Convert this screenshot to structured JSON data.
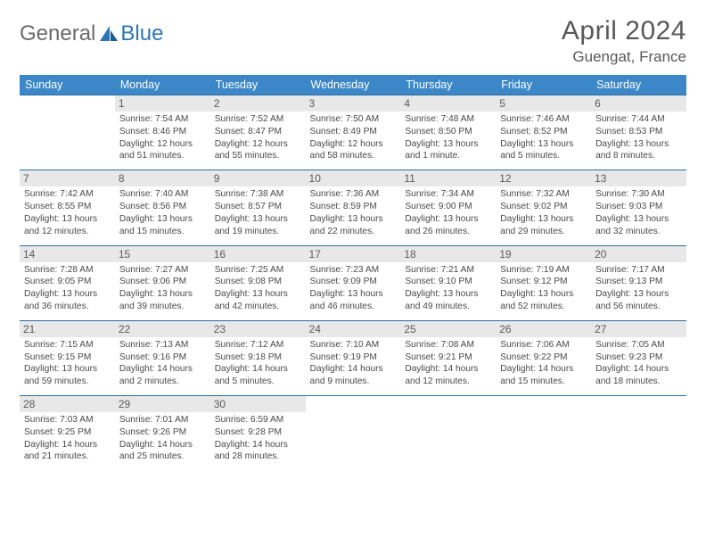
{
  "brand": {
    "part1": "General",
    "part2": "Blue"
  },
  "title": "April 2024",
  "location": "Guengat, France",
  "colors": {
    "header_bg": "#3b87c8",
    "header_text": "#ffffff",
    "border": "#2d6da3",
    "daynum_bg": "#e8e8e8",
    "text": "#4a4a4a",
    "brand_blue": "#2d76b5",
    "brand_gray": "#6a6a6a"
  },
  "weekdays": [
    "Sunday",
    "Monday",
    "Tuesday",
    "Wednesday",
    "Thursday",
    "Friday",
    "Saturday"
  ],
  "weeks": [
    [
      null,
      {
        "d": "1",
        "sr": "Sunrise: 7:54 AM",
        "ss": "Sunset: 8:46 PM",
        "dl1": "Daylight: 12 hours",
        "dl2": "and 51 minutes."
      },
      {
        "d": "2",
        "sr": "Sunrise: 7:52 AM",
        "ss": "Sunset: 8:47 PM",
        "dl1": "Daylight: 12 hours",
        "dl2": "and 55 minutes."
      },
      {
        "d": "3",
        "sr": "Sunrise: 7:50 AM",
        "ss": "Sunset: 8:49 PM",
        "dl1": "Daylight: 12 hours",
        "dl2": "and 58 minutes."
      },
      {
        "d": "4",
        "sr": "Sunrise: 7:48 AM",
        "ss": "Sunset: 8:50 PM",
        "dl1": "Daylight: 13 hours",
        "dl2": "and 1 minute."
      },
      {
        "d": "5",
        "sr": "Sunrise: 7:46 AM",
        "ss": "Sunset: 8:52 PM",
        "dl1": "Daylight: 13 hours",
        "dl2": "and 5 minutes."
      },
      {
        "d": "6",
        "sr": "Sunrise: 7:44 AM",
        "ss": "Sunset: 8:53 PM",
        "dl1": "Daylight: 13 hours",
        "dl2": "and 8 minutes."
      }
    ],
    [
      {
        "d": "7",
        "sr": "Sunrise: 7:42 AM",
        "ss": "Sunset: 8:55 PM",
        "dl1": "Daylight: 13 hours",
        "dl2": "and 12 minutes."
      },
      {
        "d": "8",
        "sr": "Sunrise: 7:40 AM",
        "ss": "Sunset: 8:56 PM",
        "dl1": "Daylight: 13 hours",
        "dl2": "and 15 minutes."
      },
      {
        "d": "9",
        "sr": "Sunrise: 7:38 AM",
        "ss": "Sunset: 8:57 PM",
        "dl1": "Daylight: 13 hours",
        "dl2": "and 19 minutes."
      },
      {
        "d": "10",
        "sr": "Sunrise: 7:36 AM",
        "ss": "Sunset: 8:59 PM",
        "dl1": "Daylight: 13 hours",
        "dl2": "and 22 minutes."
      },
      {
        "d": "11",
        "sr": "Sunrise: 7:34 AM",
        "ss": "Sunset: 9:00 PM",
        "dl1": "Daylight: 13 hours",
        "dl2": "and 26 minutes."
      },
      {
        "d": "12",
        "sr": "Sunrise: 7:32 AM",
        "ss": "Sunset: 9:02 PM",
        "dl1": "Daylight: 13 hours",
        "dl2": "and 29 minutes."
      },
      {
        "d": "13",
        "sr": "Sunrise: 7:30 AM",
        "ss": "Sunset: 9:03 PM",
        "dl1": "Daylight: 13 hours",
        "dl2": "and 32 minutes."
      }
    ],
    [
      {
        "d": "14",
        "sr": "Sunrise: 7:28 AM",
        "ss": "Sunset: 9:05 PM",
        "dl1": "Daylight: 13 hours",
        "dl2": "and 36 minutes."
      },
      {
        "d": "15",
        "sr": "Sunrise: 7:27 AM",
        "ss": "Sunset: 9:06 PM",
        "dl1": "Daylight: 13 hours",
        "dl2": "and 39 minutes."
      },
      {
        "d": "16",
        "sr": "Sunrise: 7:25 AM",
        "ss": "Sunset: 9:08 PM",
        "dl1": "Daylight: 13 hours",
        "dl2": "and 42 minutes."
      },
      {
        "d": "17",
        "sr": "Sunrise: 7:23 AM",
        "ss": "Sunset: 9:09 PM",
        "dl1": "Daylight: 13 hours",
        "dl2": "and 46 minutes."
      },
      {
        "d": "18",
        "sr": "Sunrise: 7:21 AM",
        "ss": "Sunset: 9:10 PM",
        "dl1": "Daylight: 13 hours",
        "dl2": "and 49 minutes."
      },
      {
        "d": "19",
        "sr": "Sunrise: 7:19 AM",
        "ss": "Sunset: 9:12 PM",
        "dl1": "Daylight: 13 hours",
        "dl2": "and 52 minutes."
      },
      {
        "d": "20",
        "sr": "Sunrise: 7:17 AM",
        "ss": "Sunset: 9:13 PM",
        "dl1": "Daylight: 13 hours",
        "dl2": "and 56 minutes."
      }
    ],
    [
      {
        "d": "21",
        "sr": "Sunrise: 7:15 AM",
        "ss": "Sunset: 9:15 PM",
        "dl1": "Daylight: 13 hours",
        "dl2": "and 59 minutes."
      },
      {
        "d": "22",
        "sr": "Sunrise: 7:13 AM",
        "ss": "Sunset: 9:16 PM",
        "dl1": "Daylight: 14 hours",
        "dl2": "and 2 minutes."
      },
      {
        "d": "23",
        "sr": "Sunrise: 7:12 AM",
        "ss": "Sunset: 9:18 PM",
        "dl1": "Daylight: 14 hours",
        "dl2": "and 5 minutes."
      },
      {
        "d": "24",
        "sr": "Sunrise: 7:10 AM",
        "ss": "Sunset: 9:19 PM",
        "dl1": "Daylight: 14 hours",
        "dl2": "and 9 minutes."
      },
      {
        "d": "25",
        "sr": "Sunrise: 7:08 AM",
        "ss": "Sunset: 9:21 PM",
        "dl1": "Daylight: 14 hours",
        "dl2": "and 12 minutes."
      },
      {
        "d": "26",
        "sr": "Sunrise: 7:06 AM",
        "ss": "Sunset: 9:22 PM",
        "dl1": "Daylight: 14 hours",
        "dl2": "and 15 minutes."
      },
      {
        "d": "27",
        "sr": "Sunrise: 7:05 AM",
        "ss": "Sunset: 9:23 PM",
        "dl1": "Daylight: 14 hours",
        "dl2": "and 18 minutes."
      }
    ],
    [
      {
        "d": "28",
        "sr": "Sunrise: 7:03 AM",
        "ss": "Sunset: 9:25 PM",
        "dl1": "Daylight: 14 hours",
        "dl2": "and 21 minutes."
      },
      {
        "d": "29",
        "sr": "Sunrise: 7:01 AM",
        "ss": "Sunset: 9:26 PM",
        "dl1": "Daylight: 14 hours",
        "dl2": "and 25 minutes."
      },
      {
        "d": "30",
        "sr": "Sunrise: 6:59 AM",
        "ss": "Sunset: 9:28 PM",
        "dl1": "Daylight: 14 hours",
        "dl2": "and 28 minutes."
      },
      null,
      null,
      null,
      null
    ]
  ]
}
